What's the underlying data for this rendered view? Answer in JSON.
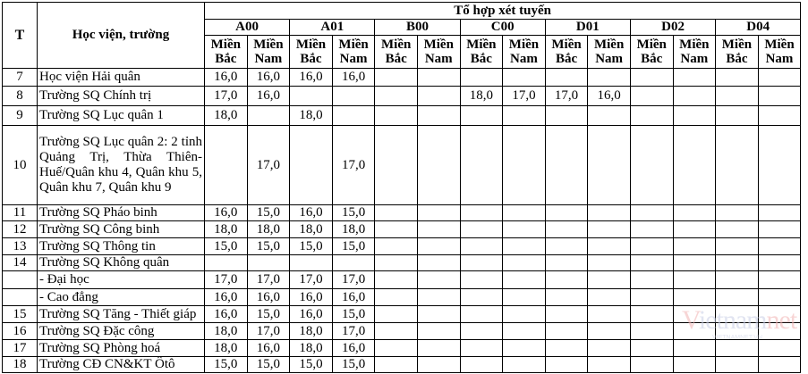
{
  "header": {
    "col_t": "T",
    "col_name": "Học viện, trường",
    "group_title": "Tổ hợp xét tuyến",
    "combos": [
      "A00",
      "A01",
      "B00",
      "C00",
      "D01",
      "D02",
      "D04"
    ],
    "sub_north": "Miền Bắc",
    "sub_south": "Miền Nam"
  },
  "rows": [
    {
      "t": "7",
      "name": "Học viện Hải quân",
      "v": [
        "16,0",
        "16,0",
        "16,0",
        "16,0",
        "",
        "",
        "",
        "",
        "",
        "",
        "",
        "",
        "",
        ""
      ]
    },
    {
      "t": "8",
      "name": "Trường SQ Chính trị",
      "v": [
        "17,0",
        "16,0",
        "",
        "",
        "",
        "",
        "18,0",
        "17,0",
        "17,0",
        "16,0",
        "",
        "",
        "",
        ""
      ]
    },
    {
      "t": "9",
      "name": "Trường SQ Lục quân 1",
      "v": [
        "18,0",
        "",
        "18,0",
        "",
        "",
        "",
        "",
        "",
        "",
        "",
        "",
        "",
        "",
        ""
      ]
    },
    {
      "t": "10",
      "name": "Trường SQ Lục quân 2: 2 tỉnh Quảng Trị, Thừa Thiên-Huế/Quân khu 4, Quân khu 5, Quân khu 7, Quân khu 9",
      "v": [
        "",
        "17,0",
        "",
        "17,0",
        "",
        "",
        "",
        "",
        "",
        "",
        "",
        "",
        "",
        ""
      ]
    },
    {
      "t": "11",
      "name": "Trường SQ Pháo binh",
      "v": [
        "16,0",
        "15,0",
        "16,0",
        "15,0",
        "",
        "",
        "",
        "",
        "",
        "",
        "",
        "",
        "",
        ""
      ]
    },
    {
      "t": "12",
      "name": "Trường SQ Công  binh",
      "v": [
        "18,0",
        "18,0",
        "18,0",
        "18,0",
        "",
        "",
        "",
        "",
        "",
        "",
        "",
        "",
        "",
        ""
      ]
    },
    {
      "t": "13",
      "name": "Trường SQ Thông tin",
      "v": [
        "15,0",
        "15,0",
        "15,0",
        "15,0",
        "",
        "",
        "",
        "",
        "",
        "",
        "",
        "",
        "",
        ""
      ]
    },
    {
      "t": "14",
      "name": "Trường SQ Không quân",
      "v": [
        "",
        "",
        "",
        "",
        "",
        "",
        "",
        "",
        "",
        "",
        "",
        "",
        "",
        ""
      ]
    },
    {
      "t": "",
      "name": "- Đại học",
      "v": [
        "17,0",
        "17,0",
        "17,0",
        "17,0",
        "",
        "",
        "",
        "",
        "",
        "",
        "",
        "",
        "",
        ""
      ]
    },
    {
      "t": "",
      "name": "- Cao đẳng",
      "v": [
        "16,0",
        "16,0",
        "16,0",
        "16,0",
        "",
        "",
        "",
        "",
        "",
        "",
        "",
        "",
        "",
        ""
      ]
    },
    {
      "t": "15",
      "name": "Trường SQ Tăng - Thiết giáp",
      "v": [
        "16,0",
        "15,0",
        "16,0",
        "15,0",
        "",
        "",
        "",
        "",
        "",
        "",
        "",
        "",
        "",
        ""
      ]
    },
    {
      "t": "16",
      "name": "Trường SQ Đặc công",
      "v": [
        "18,0",
        "17,0",
        "18,0",
        "17,0",
        "",
        "",
        "",
        "",
        "",
        "",
        "",
        "",
        "",
        ""
      ]
    },
    {
      "t": "17",
      "name": "Trường SQ Phòng hoá",
      "v": [
        "18,0",
        "16,0",
        "18,0",
        "16,0",
        "",
        "",
        "",
        "",
        "",
        "",
        "",
        "",
        "",
        ""
      ]
    },
    {
      "t": "18",
      "name": "Trường CĐ CN&KT Ôtô",
      "v": [
        "15,0",
        "15,0",
        "15,0",
        "15,0",
        "",
        "",
        "",
        "",
        "",
        "",
        "",
        "",
        "",
        ""
      ]
    }
  ],
  "watermark": {
    "logo": "vietnamnet",
    "sub": "VIETNAMNET.VN"
  }
}
